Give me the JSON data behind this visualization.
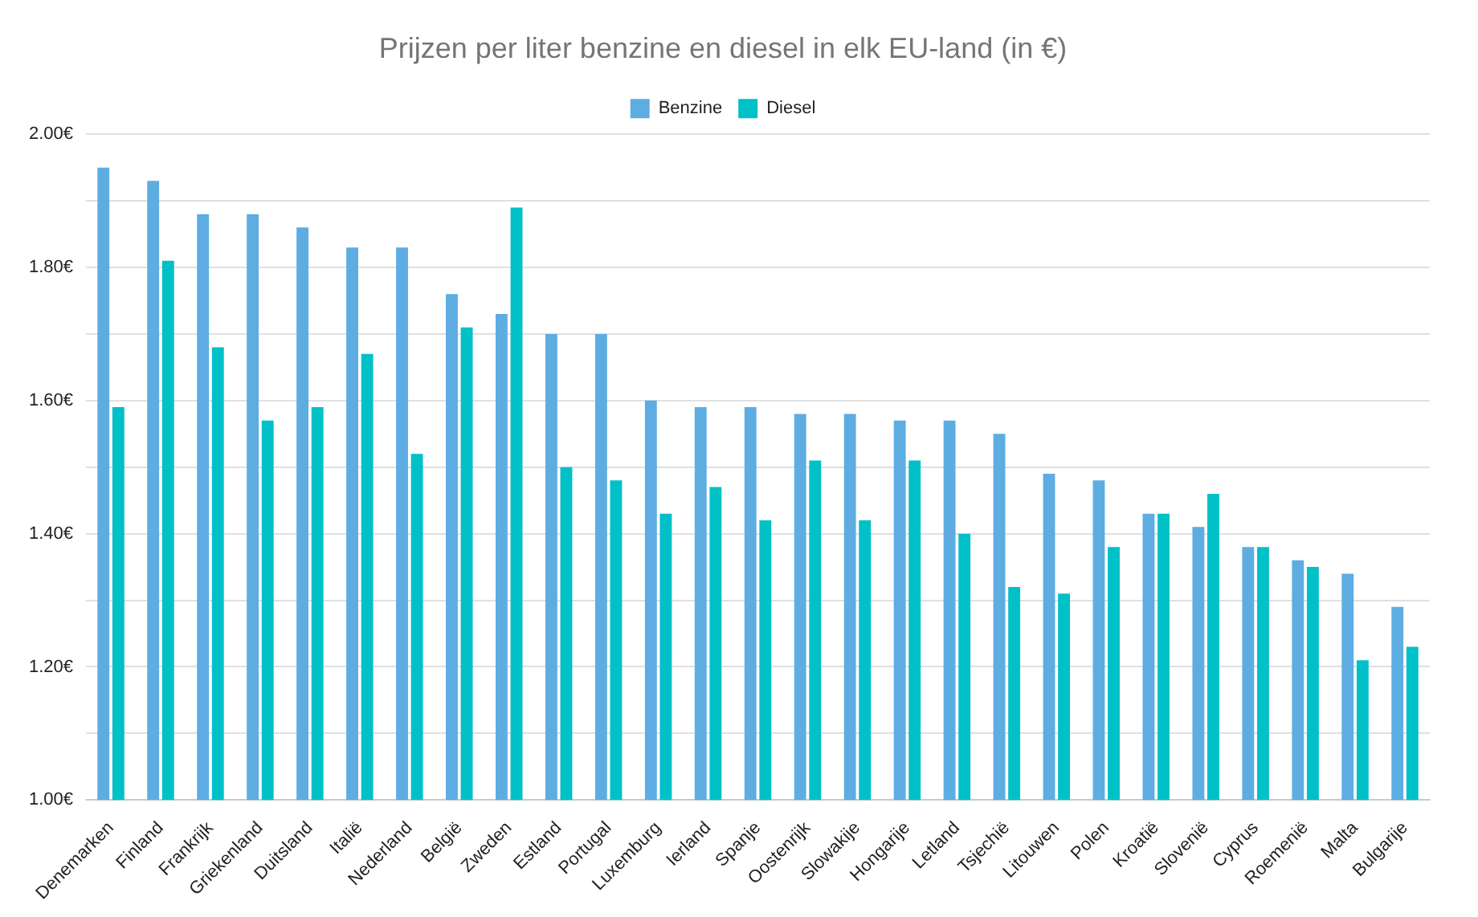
{
  "chart_data": {
    "type": "bar",
    "title": "Prijzen per liter benzine en diesel in elk EU-land (in €)",
    "categories": [
      "Denemarken",
      "Finland",
      "Frankrijk",
      "Griekenland",
      "Duitsland",
      "Italië",
      "Nederland",
      "België",
      "Zweden",
      "Estland",
      "Portugal",
      "Luxemburg",
      "Ierland",
      "Spanje",
      "Oostenrijk",
      "Slowakije",
      "Hongarije",
      "Letland",
      "Tsjechië",
      "Litouwen",
      "Polen",
      "Kroatië",
      "Slovenië",
      "Cyprus",
      "Roemenië",
      "Malta",
      "Bulgarije"
    ],
    "series": [
      {
        "name": "Benzine",
        "color": "#5dade2",
        "values": [
          1.95,
          1.93,
          1.88,
          1.88,
          1.86,
          1.83,
          1.83,
          1.76,
          1.73,
          1.7,
          1.7,
          1.6,
          1.59,
          1.59,
          1.58,
          1.58,
          1.57,
          1.57,
          1.55,
          1.49,
          1.48,
          1.43,
          1.41,
          1.38,
          1.36,
          1.34,
          1.29
        ]
      },
      {
        "name": "Diesel",
        "color": "#00c0c8",
        "values": [
          1.59,
          1.81,
          1.68,
          1.57,
          1.59,
          1.67,
          1.52,
          1.71,
          1.89,
          1.5,
          1.48,
          1.43,
          1.47,
          1.42,
          1.51,
          1.42,
          1.51,
          1.4,
          1.32,
          1.31,
          1.38,
          1.43,
          1.46,
          1.38,
          1.35,
          1.21,
          1.23
        ]
      }
    ],
    "ylim": [
      1.0,
      2.0
    ],
    "yticks": [
      {
        "value": 1.0,
        "label": "1.00€"
      },
      {
        "value": 1.1,
        "label": null
      },
      {
        "value": 1.2,
        "label": "1.20€"
      },
      {
        "value": 1.3,
        "label": null
      },
      {
        "value": 1.4,
        "label": "1.40€"
      },
      {
        "value": 1.5,
        "label": null
      },
      {
        "value": 1.6,
        "label": "1.60€"
      },
      {
        "value": 1.7,
        "label": null
      },
      {
        "value": 1.8,
        "label": "1.80€"
      },
      {
        "value": 1.9,
        "label": null
      },
      {
        "value": 2.0,
        "label": "2.00€"
      }
    ],
    "grid": "y",
    "legend": "top"
  }
}
